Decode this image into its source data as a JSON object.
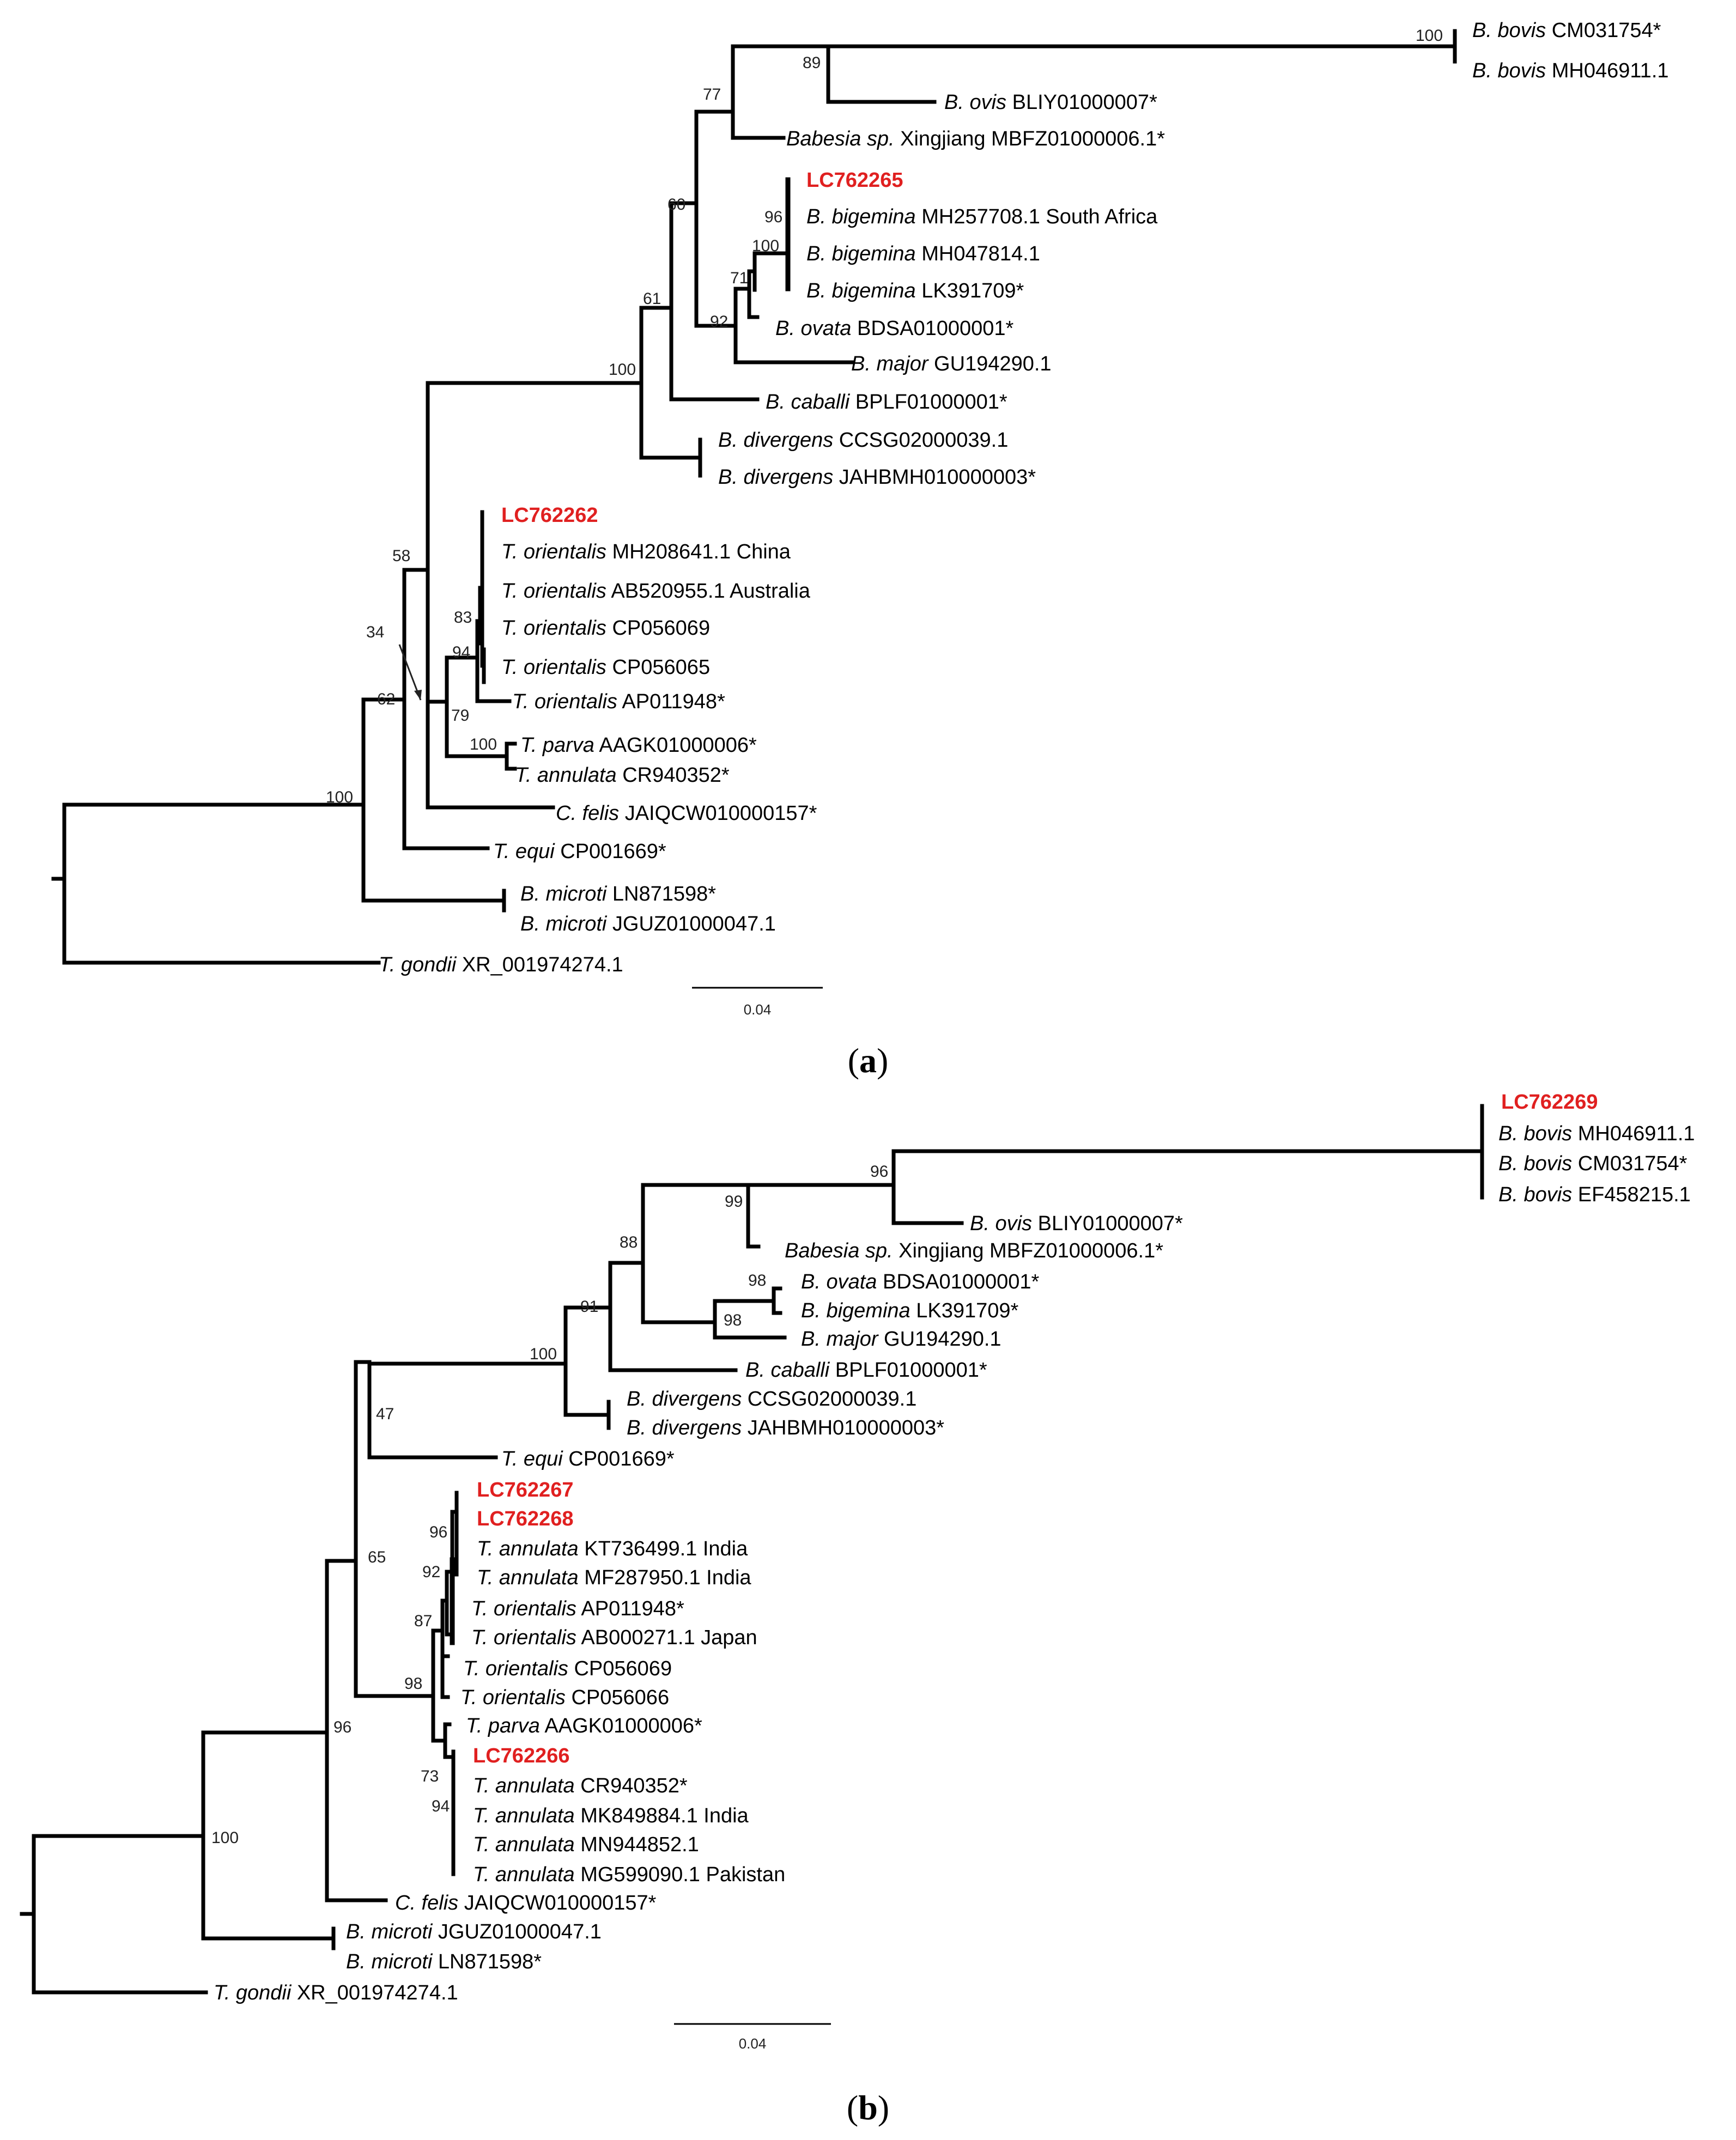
{
  "figure": {
    "panels": [
      {
        "label": "a",
        "scale_bar": "0.04",
        "tips": [
          {
            "id": "a_bbovis1",
            "species": "B. bovis",
            "acc": "CM031754*"
          },
          {
            "id": "a_bbovis2",
            "species": "B. bovis",
            "acc": "MH046911.1"
          },
          {
            "id": "a_bovis",
            "species": "B. ovis",
            "acc": "BLIY01000007*"
          },
          {
            "id": "a_babx",
            "species": "Babesia sp.",
            "acc": "Xingjiang MBFZ01000006.1*"
          },
          {
            "id": "a_lc65",
            "species": "",
            "acc": "LC762265",
            "highlight": true
          },
          {
            "id": "a_bbig1",
            "species": "B. bigemina",
            "acc": "MH257708.1 South Africa"
          },
          {
            "id": "a_bbig2",
            "species": "B. bigemina",
            "acc": "MH047814.1"
          },
          {
            "id": "a_bbig3",
            "species": "B. bigemina",
            "acc": "LK391709*"
          },
          {
            "id": "a_bovata",
            "species": "B. ovata",
            "acc": "BDSA01000001*"
          },
          {
            "id": "a_bmajor",
            "species": "B. major",
            "acc": "GU194290.1"
          },
          {
            "id": "a_bcab",
            "species": "B. caballi",
            "acc": "BPLF01000001*"
          },
          {
            "id": "a_bdiv1",
            "species": "B. divergens",
            "acc": "CCSG02000039.1"
          },
          {
            "id": "a_bdiv2",
            "species": "B. divergens",
            "acc": "JAHBMH010000003*"
          },
          {
            "id": "a_lc62",
            "species": "",
            "acc": "LC762262",
            "highlight": true
          },
          {
            "id": "a_tori1",
            "species": "T. orientalis",
            "acc": "MH208641.1 China"
          },
          {
            "id": "a_tori2",
            "species": "T. orientalis",
            "acc": "AB520955.1 Australia"
          },
          {
            "id": "a_tori3",
            "species": "T. orientalis",
            "acc": "CP056069"
          },
          {
            "id": "a_tori4",
            "species": "T. orientalis",
            "acc": "CP056065"
          },
          {
            "id": "a_tori5",
            "species": "T. orientalis",
            "acc": "AP011948*"
          },
          {
            "id": "a_tparva",
            "species": "T. parva",
            "acc": "AAGK01000006*"
          },
          {
            "id": "a_tann",
            "species": "T. annulata",
            "acc": "CR940352*"
          },
          {
            "id": "a_cfelis",
            "species": "C. felis",
            "acc": "JAIQCW010000157*"
          },
          {
            "id": "a_tequi",
            "species": "T. equi",
            "acc": "CP001669*"
          },
          {
            "id": "a_bmic1",
            "species": "B. microti",
            "acc": "LN871598*"
          },
          {
            "id": "a_bmic2",
            "species": "B. microti",
            "acc": "JGUZ01000047.1"
          },
          {
            "id": "a_tgondii",
            "species": "T. gondii",
            "acc": "XR_001974274.1"
          }
        ],
        "bootstrap": [
          {
            "id": "a_s100_bov",
            "value": "100"
          },
          {
            "id": "a_s89",
            "value": "89"
          },
          {
            "id": "a_s77",
            "value": "77"
          },
          {
            "id": "a_s96",
            "value": "96"
          },
          {
            "id": "a_s100_big",
            "value": "100"
          },
          {
            "id": "a_s71",
            "value": "71"
          },
          {
            "id": "a_s60",
            "value": "60"
          },
          {
            "id": "a_s92",
            "value": "92"
          },
          {
            "id": "a_s61",
            "value": "61"
          },
          {
            "id": "a_s100_bab",
            "value": "100"
          },
          {
            "id": "a_s58",
            "value": "58"
          },
          {
            "id": "a_s83",
            "value": "83"
          },
          {
            "id": "a_s94",
            "value": "94"
          },
          {
            "id": "a_s34",
            "value": "34"
          },
          {
            "id": "a_s79",
            "value": "79"
          },
          {
            "id": "a_s100_tp",
            "value": "100"
          },
          {
            "id": "a_s62",
            "value": "62"
          },
          {
            "id": "a_s100_root",
            "value": "100"
          }
        ]
      },
      {
        "label": "b",
        "scale_bar": "0.04",
        "tips": [
          {
            "id": "b_lc69",
            "species": "",
            "acc": "LC762269",
            "highlight": true
          },
          {
            "id": "b_bbovis1",
            "species": "B. bovis",
            "acc": "MH046911.1"
          },
          {
            "id": "b_bbovis2",
            "species": "B. bovis",
            "acc": "CM031754*"
          },
          {
            "id": "b_bbovis3",
            "species": "B. bovis",
            "acc": "EF458215.1"
          },
          {
            "id": "b_bovis",
            "species": "B. ovis",
            "acc": "BLIY01000007*"
          },
          {
            "id": "b_babx",
            "species": "Babesia sp.",
            "acc": "Xingjiang MBFZ01000006.1*"
          },
          {
            "id": "b_bovata",
            "species": "B. ovata",
            "acc": "BDSA01000001*"
          },
          {
            "id": "b_bbig",
            "species": "B. bigemina",
            "acc": "LK391709*"
          },
          {
            "id": "b_bmajor",
            "species": "B. major",
            "acc": "GU194290.1"
          },
          {
            "id": "b_bcab",
            "species": "B. caballi",
            "acc": "BPLF01000001*"
          },
          {
            "id": "b_bdiv1",
            "species": "B. divergens",
            "acc": "CCSG02000039.1"
          },
          {
            "id": "b_bdiv2",
            "species": "B. divergens",
            "acc": "JAHBMH010000003*"
          },
          {
            "id": "b_tequi",
            "species": "T. equi",
            "acc": "CP001669*"
          },
          {
            "id": "b_lc67",
            "species": "",
            "acc": "LC762267",
            "highlight": true
          },
          {
            "id": "b_lc68",
            "species": "",
            "acc": "LC762268",
            "highlight": true
          },
          {
            "id": "b_tann1",
            "species": "T. annulata",
            "acc": "KT736499.1 India"
          },
          {
            "id": "b_tann2",
            "species": "T. annulata",
            "acc": "MF287950.1 India"
          },
          {
            "id": "b_tori1",
            "species": "T. orientalis",
            "acc": "AP011948*"
          },
          {
            "id": "b_tori2",
            "species": "T. orientalis",
            "acc": "AB000271.1 Japan"
          },
          {
            "id": "b_tori3",
            "species": "T. orientalis",
            "acc": "CP056069"
          },
          {
            "id": "b_tori4",
            "species": "T. orientalis",
            "acc": "CP056066"
          },
          {
            "id": "b_tparva",
            "species": "T. parva",
            "acc": "AAGK01000006*"
          },
          {
            "id": "b_lc66",
            "species": "",
            "acc": "LC762266",
            "highlight": true
          },
          {
            "id": "b_tann3",
            "species": "T. annulata",
            "acc": "CR940352*"
          },
          {
            "id": "b_tann4",
            "species": "T. annulata",
            "acc": "MK849884.1 India"
          },
          {
            "id": "b_tann5",
            "species": "T. annulata",
            "acc": "MN944852.1"
          },
          {
            "id": "b_tann6",
            "species": "T. annulata",
            "acc": "MG599090.1 Pakistan"
          },
          {
            "id": "b_cfelis",
            "species": "C. felis",
            "acc": "JAIQCW010000157*"
          },
          {
            "id": "b_bmic1",
            "species": "B. microti",
            "acc": "JGUZ01000047.1"
          },
          {
            "id": "b_bmic2",
            "species": "B. microti",
            "acc": "LN871598*"
          },
          {
            "id": "b_tgondii",
            "species": "T. gondii",
            "acc": "XR_001974274.1"
          }
        ],
        "bootstrap": [
          {
            "id": "b_s96_bov",
            "value": "96"
          },
          {
            "id": "b_s99",
            "value": "99"
          },
          {
            "id": "b_s98_a",
            "value": "98"
          },
          {
            "id": "b_s98_b",
            "value": "98"
          },
          {
            "id": "b_s88",
            "value": "88"
          },
          {
            "id": "b_s91",
            "value": "91"
          },
          {
            "id": "b_s100_bab",
            "value": "100"
          },
          {
            "id": "b_s47",
            "value": "47"
          },
          {
            "id": "b_s96_t",
            "value": "96"
          },
          {
            "id": "b_s92",
            "value": "92"
          },
          {
            "id": "b_s87",
            "value": "87"
          },
          {
            "id": "b_s98_t",
            "value": "98"
          },
          {
            "id": "b_s73",
            "value": "73"
          },
          {
            "id": "b_s94",
            "value": "94"
          },
          {
            "id": "b_s65",
            "value": "65"
          },
          {
            "id": "b_s96_root",
            "value": "96"
          },
          {
            "id": "b_s100_root",
            "value": "100"
          }
        ]
      }
    ]
  }
}
